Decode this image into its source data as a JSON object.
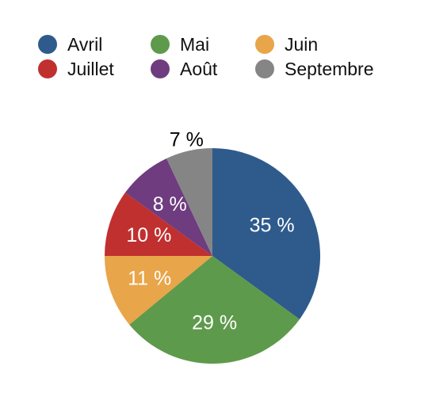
{
  "chart_data": {
    "type": "pie",
    "title": "",
    "categories": [
      "Avril",
      "Mai",
      "Juin",
      "Juillet",
      "Août",
      "Septembre"
    ],
    "values": [
      35,
      29,
      11,
      10,
      8,
      7
    ],
    "labels": [
      "35 %",
      "29 %",
      "11 %",
      "10 %",
      "8 %",
      "7 %"
    ],
    "colors": [
      "#2e5b8c",
      "#5e9a4b",
      "#e8a549",
      "#c0302f",
      "#6f3c7f",
      "#858585"
    ],
    "legend_position": "top"
  }
}
